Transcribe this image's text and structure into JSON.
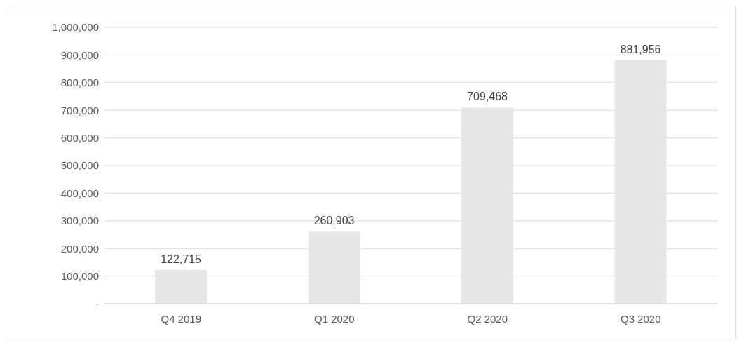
{
  "chart_data": {
    "type": "bar",
    "categories": [
      "Q4 2019",
      "Q1 2020",
      "Q2 2020",
      "Q3 2020"
    ],
    "values": [
      122715,
      260903,
      709468,
      881956
    ],
    "color": "#e7e6e6",
    "ylim": [
      0,
      1000000
    ],
    "yticks": [
      {
        "value": 0,
        "label": "-"
      },
      {
        "value": 100000,
        "label": "100,000"
      },
      {
        "value": 200000,
        "label": "200,000"
      },
      {
        "value": 300000,
        "label": "300,000"
      },
      {
        "value": 400000,
        "label": "400,000"
      },
      {
        "value": 500000,
        "label": "500,000"
      },
      {
        "value": 600000,
        "label": "600,000"
      },
      {
        "value": 700000,
        "label": "700,000"
      },
      {
        "value": 800000,
        "label": "800,000"
      },
      {
        "value": 900000,
        "label": "900,000"
      },
      {
        "value": 1000000,
        "label": "1,000,000"
      }
    ],
    "grid": "y",
    "value_labels": [
      "122,715",
      "260,903",
      "709,468",
      "881,956"
    ]
  }
}
